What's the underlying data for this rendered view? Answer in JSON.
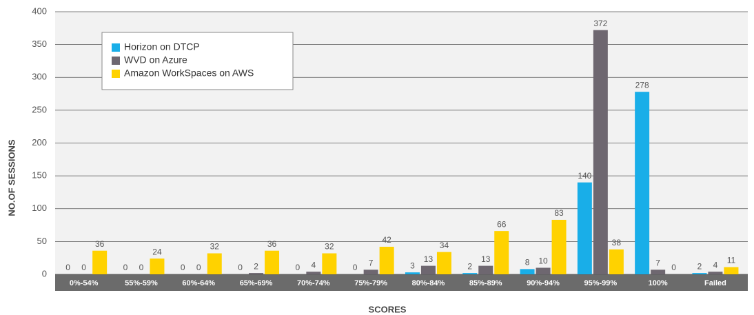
{
  "chart_data": {
    "type": "bar",
    "categories": [
      "0%-54%",
      "55%-59%",
      "60%-64%",
      "65%-69%",
      "70%-74%",
      "75%-79%",
      "80%-84%",
      "85%-89%",
      "90%-94%",
      "95%-99%",
      "100%",
      "Failed"
    ],
    "series": [
      {
        "name": "Horizon on DTCP",
        "color": "#19aee8",
        "values": [
          0,
          0,
          0,
          0,
          0,
          0,
          3,
          2,
          8,
          140,
          278,
          2
        ]
      },
      {
        "name": "WVD on Azure",
        "color": "#6e6770",
        "values": [
          0,
          0,
          0,
          2,
          4,
          7,
          13,
          13,
          10,
          372,
          7,
          4
        ]
      },
      {
        "name": "Amazon WorkSpaces on AWS",
        "color": "#ffd200",
        "values": [
          36,
          24,
          32,
          36,
          32,
          42,
          34,
          66,
          83,
          38,
          0,
          11
        ]
      }
    ],
    "xlabel": "SCORES",
    "ylabel": "NO.OF SESSIONS",
    "ylim": [
      0,
      400
    ],
    "yticks": [
      0,
      50,
      100,
      150,
      200,
      250,
      300,
      350,
      400
    ],
    "grid": true,
    "legend": "upper left"
  }
}
